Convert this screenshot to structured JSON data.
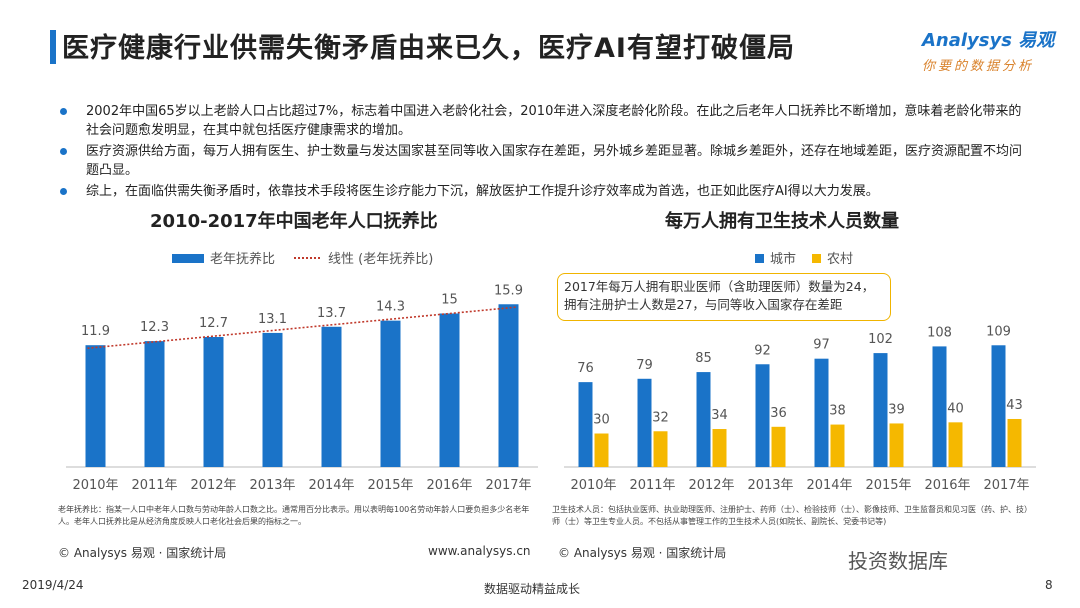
{
  "title": "医疗健康行业供需失衡矛盾由来已久，医疗AI有望打破僵局",
  "logo": {
    "brand_text": "Analysys 易观",
    "tagline": "你要的数据分析"
  },
  "bullets": [
    "2002年中国65岁以上老龄人口占比超过7%，标志着中国进入老龄化社会，2010年进入深度老龄化阶段。在此之后老年人口抚养比不断增加，意味着老龄化带来的社会问题愈发明显，在其中就包括医疗健康需求的增加。",
    "医疗资源供给方面，每万人拥有医生、护士数量与发达国家甚至同等收入国家存在差距，另外城乡差距显著。除城乡差距外，还存在地域差距，医疗资源配置不均问题凸显。",
    "综上，在面临供需失衡矛盾时，依靠技术手段将医生诊疗能力下沉，解放医护工作提升诊疗效率成为首选，也正如此医疗AI得以大力发展。"
  ],
  "chart_data": [
    {
      "type": "bar",
      "title": "2010-2017年中国老年人口抚养比",
      "categories": [
        "2010年",
        "2011年",
        "2012年",
        "2013年",
        "2014年",
        "2015年",
        "2016年",
        "2017年"
      ],
      "series": [
        {
          "name": "老年抚养比",
          "values": [
            11.9,
            12.3,
            12.7,
            13.1,
            13.7,
            14.3,
            15,
            15.9
          ],
          "color": "#1a73c8"
        }
      ],
      "trendline": {
        "name": "线性 (老年抚养比)",
        "color": "#c0392b",
        "style": "dotted"
      },
      "ylim": [
        0,
        17
      ],
      "legend": "top"
    },
    {
      "type": "bar",
      "title": "每万人拥有卫生技术人员数量",
      "categories": [
        "2010年",
        "2011年",
        "2012年",
        "2013年",
        "2014年",
        "2015年",
        "2016年",
        "2017年"
      ],
      "series": [
        {
          "name": "城市",
          "values": [
            76,
            79,
            85,
            92,
            97,
            102,
            108,
            109
          ],
          "color": "#1a73c8"
        },
        {
          "name": "农村",
          "values": [
            30,
            32,
            34,
            36,
            38,
            39,
            40,
            43
          ],
          "color": "#f5b800"
        }
      ],
      "annotation": "2017年每万人拥有职业医师（含助理医师）数量为24，拥有注册护士人数是27，与同等收入国家存在差距",
      "ylim": [
        0,
        120
      ],
      "legend": "top"
    }
  ],
  "notes": {
    "left": "老年抚养比：指某一人口中老年人口数与劳动年龄人口数之比。通常用百分比表示。用以表明每100名劳动年龄人口要负担多少名老年人。老年人口抚养比是从经济角度反映人口老化社会后果的指标之一。",
    "right": "卫生技术人员：包括执业医师、执业助理医师、注册护士、药师（士）、检验技师（士）、影像技师、卫生监督员和见习医（药、护、技）师（士）等卫生专业人员。不包括从事管理工作的卫生技术人员(如院长、副院长、党委书记等)"
  },
  "source_left": "© Analysys 易观 · 国家统计局",
  "source_right": "© Analysys 易观 · 国家统计局",
  "url": "www.analysys.cn",
  "footer": {
    "date": "2019/4/24",
    "center": "数据驱动精益成长",
    "page": "8"
  },
  "wechat": "投资数据库"
}
